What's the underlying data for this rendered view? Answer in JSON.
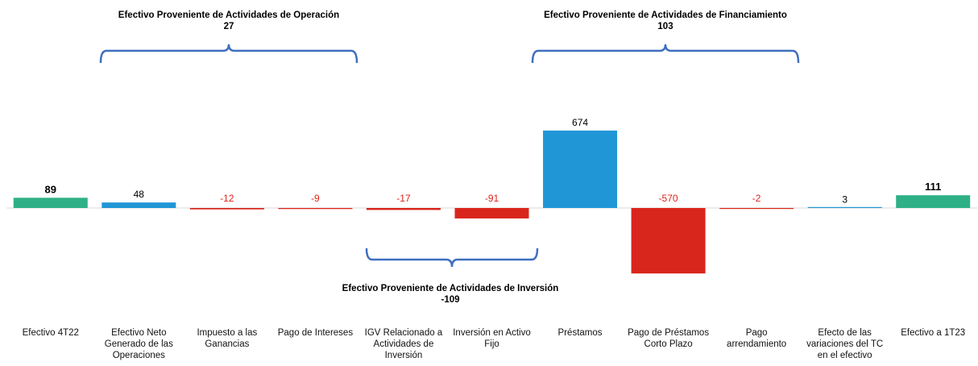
{
  "chart_data": {
    "type": "bar",
    "categories": [
      "Efectivo 4T22",
      "Efectivo Neto Generado de las Operaciones",
      "Impuesto a las Ganancias",
      "Pago de Intereses",
      "IGV Relacionado a Actividades de Inversión",
      "Inversión en Activo Fijo",
      "Préstamos",
      "Pago de Préstamos Corto Plazo",
      "Pago arrendamiento",
      "Efecto de las variaciones del TC en el efectivo",
      "Efectivo a 1T23"
    ],
    "values": [
      89,
      48,
      -12,
      -9,
      -17,
      -91,
      674,
      -570,
      -2,
      3,
      111
    ],
    "colors": [
      "#2eb086",
      "#2196d6",
      "#d9261c",
      "#d9261c",
      "#d9261c",
      "#d9261c",
      "#2196d6",
      "#d9261c",
      "#d9261c",
      "#2196d6",
      "#2eb086"
    ],
    "label_colors": [
      "#000000",
      "#000000",
      "#e0201a",
      "#e0201a",
      "#e0201a",
      "#e0201a",
      "#000000",
      "#e0201a",
      "#e0201a",
      "#000000",
      "#000000"
    ],
    "ylim": [
      -800,
      1000
    ],
    "annotations": [
      {
        "label": "Efectivo Proveniente de Actividades de Operación",
        "value": 27
      },
      {
        "label": "Efectivo Proveniente de Actividades de Financiamiento",
        "value": 103
      },
      {
        "label": "Efectivo Proveniente de Actividades de Inversión",
        "value": -109
      }
    ],
    "bracket_color": "#3f6fc0"
  }
}
